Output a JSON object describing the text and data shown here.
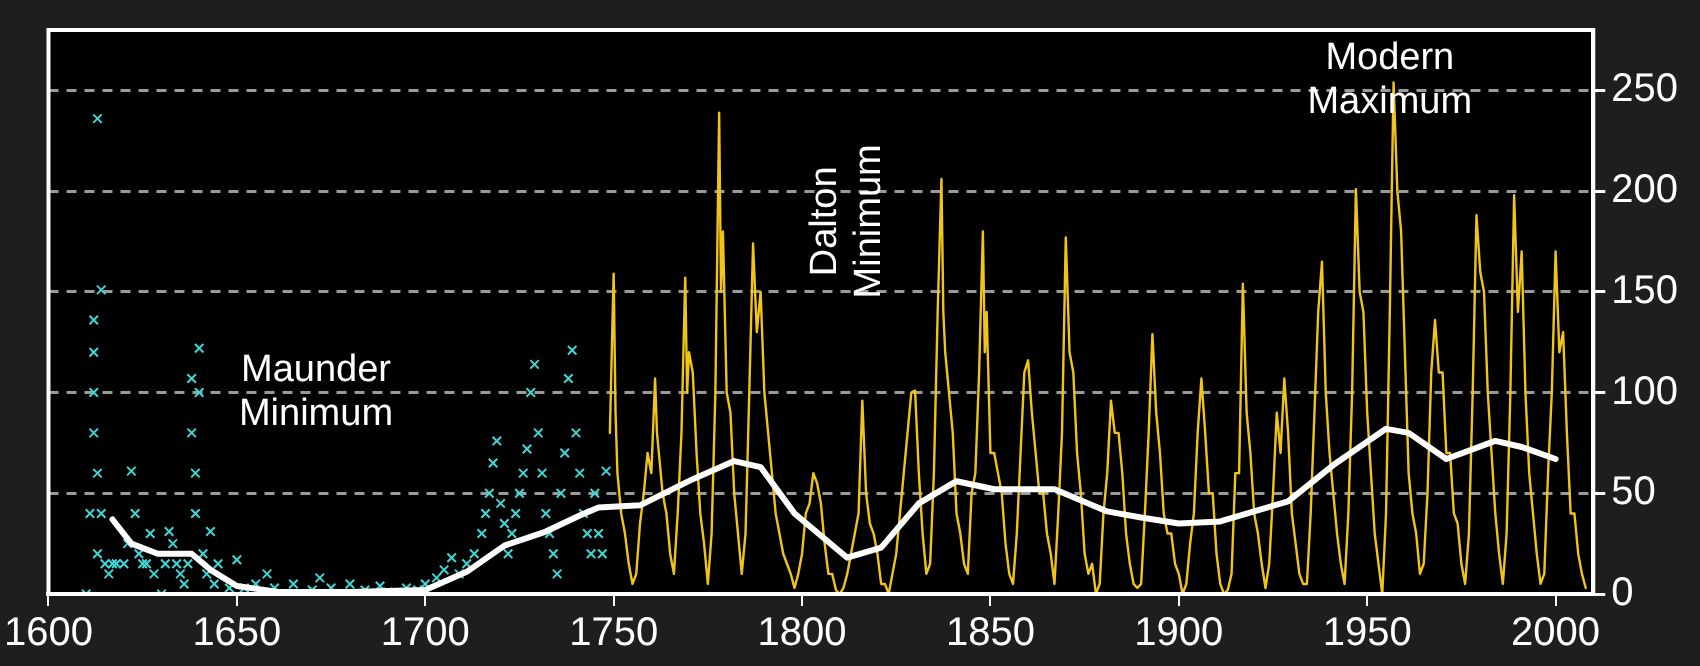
{
  "chart_data": {
    "type": "line",
    "xlim": [
      1600,
      2010
    ],
    "xticks": [
      1600,
      1650,
      1700,
      1750,
      1800,
      1850,
      1900,
      1950,
      2000
    ],
    "ylim": [
      0,
      280
    ],
    "yticks": [
      0,
      50,
      100,
      150,
      200,
      250
    ],
    "grid": "y",
    "legend": false,
    "annotations": [
      "Maunder Minimum",
      "Dalton Minimum",
      "Modern Maximum"
    ],
    "series": [
      {
        "type": "scatter",
        "marker": "cross",
        "color": "#3fd6d6",
        "x": [
          1610,
          1611,
          1612,
          1612,
          1612,
          1612,
          1613,
          1613,
          1613,
          1614,
          1614,
          1615,
          1616,
          1617,
          1618,
          1620,
          1621,
          1622,
          1623,
          1624,
          1625,
          1626,
          1627,
          1628,
          1630,
          1631,
          1632,
          1633,
          1634,
          1635,
          1636,
          1637,
          1638,
          1638,
          1639,
          1639,
          1640,
          1640,
          1641,
          1642,
          1643,
          1644,
          1645,
          1648,
          1650,
          1652,
          1655,
          1658,
          1660,
          1665,
          1670,
          1672,
          1675,
          1680,
          1684,
          1688,
          1690,
          1695,
          1698,
          1700,
          1703,
          1705,
          1707,
          1709,
          1711,
          1713,
          1715,
          1716,
          1717,
          1718,
          1719,
          1720,
          1721,
          1722,
          1723,
          1724,
          1725,
          1726,
          1727,
          1728,
          1729,
          1730,
          1731,
          1732,
          1733,
          1734,
          1735,
          1736,
          1737,
          1738,
          1739,
          1740,
          1741,
          1742,
          1743,
          1744,
          1745,
          1746,
          1747,
          1748
        ],
        "values": [
          0,
          40,
          136,
          120,
          100,
          80,
          236,
          60,
          20,
          151,
          40,
          15,
          10,
          15,
          15,
          15,
          25,
          61,
          40,
          20,
          15,
          15,
          30,
          10,
          0,
          15,
          31,
          25,
          15,
          10,
          5,
          15,
          107,
          80,
          60,
          40,
          122,
          100,
          20,
          10,
          31,
          5,
          15,
          3,
          17,
          3,
          5,
          10,
          3,
          5,
          2,
          8,
          3,
          5,
          2,
          4,
          1,
          3,
          2,
          5,
          8,
          12,
          18,
          10,
          15,
          20,
          30,
          40,
          50,
          65,
          76,
          45,
          35,
          20,
          30,
          40,
          50,
          60,
          72,
          100,
          114,
          80,
          60,
          40,
          30,
          20,
          10,
          50,
          70,
          107,
          121,
          80,
          60,
          40,
          30,
          20,
          50,
          30,
          20,
          61
        ]
      },
      {
        "color": "#f0c419",
        "x": [
          1749,
          1749.5,
          1750,
          1750.5,
          1751,
          1752,
          1753,
          1754,
          1755,
          1756,
          1757,
          1758,
          1759,
          1760,
          1761,
          1761.5,
          1762,
          1763,
          1764,
          1765,
          1766,
          1767,
          1768,
          1769,
          1769.5,
          1770,
          1771,
          1772,
          1773,
          1774,
          1775,
          1776,
          1777,
          1778,
          1778.5,
          1779,
          1780,
          1781,
          1782,
          1783,
          1784,
          1785,
          1786,
          1787,
          1788,
          1789,
          1790,
          1791,
          1792,
          1793,
          1794,
          1795,
          1796,
          1797,
          1798,
          1799,
          1800,
          1801,
          1802,
          1803,
          1804,
          1805,
          1806,
          1807,
          1808,
          1809,
          1810,
          1811,
          1812,
          1813,
          1814,
          1815,
          1816,
          1817,
          1818,
          1819,
          1820,
          1821,
          1822,
          1823,
          1824,
          1825,
          1826,
          1827,
          1828,
          1829,
          1830,
          1831,
          1832,
          1833,
          1834,
          1835,
          1836,
          1837,
          1837.5,
          1838,
          1839,
          1840,
          1841,
          1842,
          1843,
          1844,
          1845,
          1846,
          1847,
          1848,
          1848.5,
          1849,
          1850,
          1851,
          1852,
          1853,
          1854,
          1855,
          1856,
          1857,
          1858,
          1859,
          1860,
          1861,
          1862,
          1863,
          1864,
          1865,
          1866,
          1867,
          1868,
          1869,
          1870,
          1871,
          1872,
          1873,
          1874,
          1875,
          1876,
          1877,
          1878,
          1879,
          1880,
          1881,
          1882,
          1883,
          1884,
          1885,
          1886,
          1887,
          1888,
          1889,
          1890,
          1891,
          1892,
          1893,
          1894,
          1895,
          1896,
          1897,
          1898,
          1899,
          1900,
          1901,
          1902,
          1903,
          1904,
          1905,
          1906,
          1907,
          1908,
          1909,
          1910,
          1911,
          1912,
          1913,
          1914,
          1915,
          1916,
          1917,
          1918,
          1919,
          1920,
          1921,
          1922,
          1923,
          1924,
          1925,
          1926,
          1927,
          1928,
          1929,
          1930,
          1931,
          1932,
          1933,
          1934,
          1935,
          1936,
          1937,
          1938,
          1939,
          1940,
          1941,
          1942,
          1943,
          1944,
          1945,
          1946,
          1947,
          1948,
          1949,
          1950,
          1951,
          1952,
          1953,
          1954,
          1955,
          1956,
          1957,
          1958,
          1959,
          1960,
          1961,
          1962,
          1963,
          1964,
          1965,
          1966,
          1967,
          1968,
          1969,
          1970,
          1971,
          1972,
          1973,
          1974,
          1975,
          1976,
          1977,
          1978,
          1979,
          1980,
          1981,
          1982,
          1983,
          1984,
          1985,
          1986,
          1987,
          1988,
          1989,
          1990,
          1991,
          1992,
          1993,
          1994,
          1995,
          1996,
          1997,
          1998,
          1999,
          2000,
          2001,
          2002,
          2003,
          2004,
          2005,
          2006,
          2007,
          2008
        ],
        "values": [
          80,
          120,
          159,
          90,
          60,
          40,
          30,
          15,
          5,
          10,
          35,
          50,
          70,
          60,
          107,
          80,
          70,
          50,
          40,
          20,
          10,
          40,
          80,
          157,
          100,
          120,
          110,
          70,
          40,
          25,
          5,
          30,
          100,
          239,
          150,
          180,
          100,
          90,
          50,
          30,
          10,
          30,
          100,
          174,
          130,
          150,
          100,
          80,
          60,
          40,
          30,
          20,
          15,
          10,
          3,
          10,
          20,
          40,
          45,
          60,
          55,
          45,
          25,
          10,
          10,
          2,
          0,
          3,
          10,
          20,
          30,
          40,
          96,
          50,
          35,
          30,
          20,
          5,
          5,
          0,
          10,
          20,
          40,
          60,
          80,
          100,
          101,
          60,
          30,
          10,
          15,
          60,
          140,
          206,
          140,
          120,
          100,
          80,
          40,
          30,
          15,
          10,
          50,
          60,
          110,
          180,
          120,
          140,
          70,
          70,
          60,
          50,
          25,
          10,
          5,
          30,
          70,
          110,
          116,
          90,
          70,
          50,
          50,
          30,
          20,
          5,
          40,
          80,
          177,
          120,
          110,
          70,
          50,
          20,
          10,
          15,
          0,
          5,
          40,
          60,
          96,
          80,
          80,
          60,
          30,
          15,
          5,
          3,
          5,
          40,
          80,
          129,
          90,
          70,
          40,
          30,
          30,
          15,
          10,
          0,
          5,
          25,
          40,
          80,
          107,
          80,
          50,
          50,
          20,
          5,
          0,
          2,
          10,
          60,
          60,
          154,
          90,
          70,
          40,
          30,
          15,
          3,
          15,
          50,
          90,
          70,
          107,
          80,
          40,
          25,
          10,
          5,
          5,
          40,
          90,
          140,
          165,
          100,
          70,
          50,
          30,
          15,
          5,
          40,
          100,
          201,
          150,
          140,
          90,
          60,
          30,
          15,
          0,
          40,
          140,
          254,
          200,
          180,
          120,
          60,
          40,
          30,
          10,
          15,
          50,
          110,
          136,
          110,
          110,
          70,
          70,
          40,
          35,
          15,
          5,
          30,
          100,
          188,
          160,
          150,
          100,
          70,
          40,
          20,
          5,
          30,
          100,
          198,
          140,
          170,
          100,
          60,
          40,
          20,
          5,
          10,
          60,
          100,
          170,
          120,
          130,
          80,
          40,
          40,
          20,
          10,
          3
        ]
      },
      {
        "color": "#ffffff",
        "x": [
          1617,
          1622,
          1629,
          1638,
          1643,
          1650,
          1661,
          1680,
          1700,
          1711,
          1721,
          1732,
          1741,
          1746,
          1757,
          1771,
          1782,
          1789,
          1798,
          1812,
          1821,
          1831,
          1841,
          1851,
          1867,
          1881,
          1890,
          1900,
          1911,
          1920,
          1929,
          1941,
          1955,
          1961,
          1971,
          1984,
          1991,
          2000
        ],
        "values": [
          37,
          25,
          20,
          20,
          12,
          4,
          1,
          1,
          2,
          11,
          24,
          31,
          39,
          43,
          44,
          57,
          66,
          63,
          40,
          18,
          23,
          45,
          56,
          52,
          52,
          41,
          38,
          35,
          36,
          41,
          46,
          64,
          82,
          80,
          67,
          76,
          73,
          67
        ]
      }
    ]
  }
}
